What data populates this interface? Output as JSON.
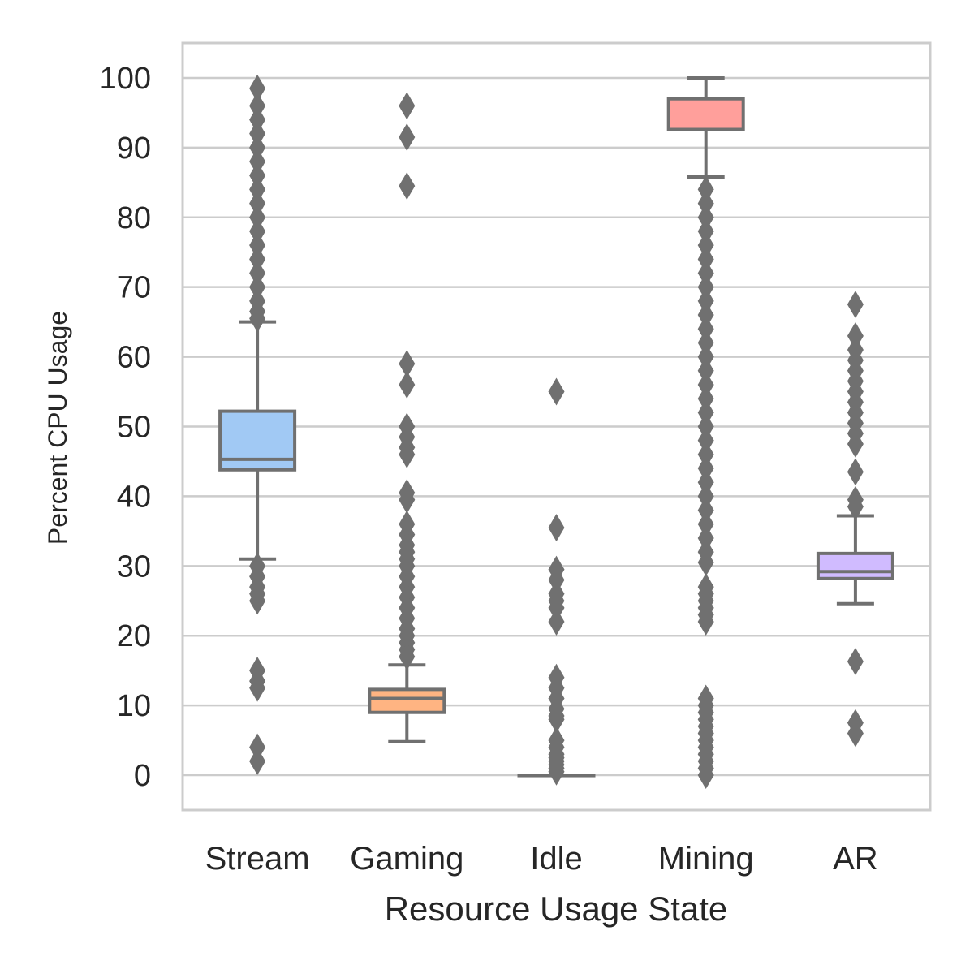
{
  "chart_data": {
    "type": "box",
    "xlabel": "Resource Usage State",
    "ylabel": "Percent CPU Usage",
    "ylim": [
      -5,
      105
    ],
    "yticks": [
      0,
      10,
      20,
      30,
      40,
      50,
      60,
      70,
      80,
      90,
      100
    ],
    "grid": "horizontal",
    "legend": "none",
    "categories": [
      "Stream",
      "Gaming",
      "Idle",
      "Mining",
      "AR"
    ],
    "boxes": [
      {
        "category": "Stream",
        "color": "#a1c9f4",
        "whisker_low": 31,
        "q1": 43.8,
        "median": 45.3,
        "q3": 52.2,
        "whisker_high": 65,
        "outliers": [
          98.5,
          96,
          94,
          92,
          90,
          88,
          86,
          84,
          82,
          80,
          78,
          76,
          74,
          72,
          70,
          68,
          66.5,
          65.5,
          30,
          28.5,
          27,
          26,
          25,
          15,
          13.5,
          12.5,
          4,
          2
        ]
      },
      {
        "category": "Gaming",
        "color": "#ffb482",
        "whisker_low": 4.8,
        "q1": 9,
        "median": 11,
        "q3": 12.3,
        "whisker_high": 15.8,
        "outliers": [
          96,
          91.5,
          84.5,
          59,
          56,
          50,
          48.5,
          47,
          46,
          40.5,
          39.5,
          36,
          34.5,
          33,
          32,
          31,
          30,
          28.5,
          27,
          25.5,
          24,
          22.5,
          21,
          20,
          19,
          18,
          17
        ]
      },
      {
        "category": "Idle",
        "color": "#8de5a1",
        "whisker_low": 0,
        "q1": 0,
        "median": 0,
        "q3": 0,
        "whisker_high": 0,
        "outliers": [
          55,
          35.5,
          29.5,
          28,
          26,
          25,
          24,
          22,
          14,
          12.5,
          11,
          9.5,
          8.5,
          8,
          5,
          4,
          3,
          2.5,
          2,
          1.5,
          1,
          0.5
        ]
      },
      {
        "category": "Mining",
        "color": "#ff9f9b",
        "whisker_low": 85.8,
        "q1": 92.6,
        "median": 92.6,
        "q3": 97,
        "whisker_high": 100,
        "outliers": [
          84,
          82,
          80,
          78,
          76,
          74,
          72,
          70,
          68,
          66,
          64,
          62,
          60,
          58,
          56,
          54,
          52,
          50,
          48,
          46,
          44,
          42,
          40,
          38,
          36,
          34,
          32,
          30.5,
          27,
          26,
          25,
          24,
          23,
          22,
          11,
          10,
          9,
          8,
          7,
          6,
          5,
          4,
          3,
          2,
          1,
          0
        ]
      },
      {
        "category": "AR",
        "color": "#d0bbff",
        "whisker_low": 24.6,
        "q1": 28.2,
        "median": 29.2,
        "q3": 31.8,
        "whisker_high": 37.2,
        "outliers": [
          67.5,
          63,
          61,
          59.5,
          58,
          56.5,
          55,
          53.5,
          52,
          50.5,
          49,
          47.5,
          43.5,
          39.5,
          38.5,
          16.3,
          7.5,
          6
        ]
      }
    ]
  }
}
